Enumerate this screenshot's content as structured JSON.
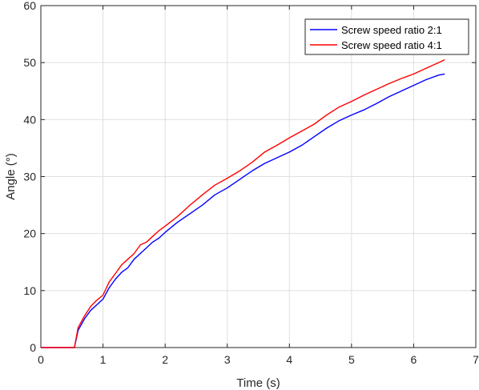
{
  "chart_data": {
    "type": "line",
    "xlabel": "Time (s)",
    "ylabel": "Angle (°)",
    "xlim": [
      0,
      7
    ],
    "ylim": [
      0,
      60
    ],
    "xticks": [
      0,
      1,
      2,
      3,
      4,
      5,
      6,
      7
    ],
    "yticks": [
      0,
      10,
      20,
      30,
      40,
      50,
      60
    ],
    "grid": true,
    "legend_position": "top-right",
    "series": [
      {
        "name": "Screw speed ratio 2:1",
        "color": "#0000ff",
        "x": [
          0,
          0.54,
          0.6,
          0.7,
          0.8,
          0.9,
          1.0,
          1.1,
          1.2,
          1.3,
          1.4,
          1.5,
          1.6,
          1.7,
          1.8,
          1.9,
          2.0,
          2.2,
          2.4,
          2.6,
          2.8,
          3.0,
          3.2,
          3.4,
          3.6,
          3.8,
          4.0,
          4.2,
          4.4,
          4.6,
          4.8,
          5.0,
          5.2,
          5.4,
          5.6,
          5.8,
          6.0,
          6.2,
          6.4,
          6.5
        ],
        "y": [
          0,
          0,
          3,
          5,
          6.5,
          7.5,
          8.5,
          10.5,
          12,
          13.2,
          14,
          15.5,
          16.5,
          17.5,
          18.5,
          19.2,
          20.2,
          22,
          23.5,
          25,
          26.8,
          28,
          29.5,
          31,
          32.3,
          33.3,
          34.3,
          35.5,
          37,
          38.5,
          39.8,
          40.8,
          41.7,
          42.8,
          44,
          45,
          46,
          47,
          47.8,
          48
        ]
      },
      {
        "name": "Screw speed ratio 4:1",
        "color": "#ff0000",
        "x": [
          0,
          0.54,
          0.6,
          0.7,
          0.8,
          0.9,
          1.0,
          1.1,
          1.2,
          1.3,
          1.4,
          1.5,
          1.6,
          1.7,
          1.8,
          1.9,
          2.0,
          2.2,
          2.4,
          2.6,
          2.8,
          3.0,
          3.2,
          3.4,
          3.6,
          3.8,
          4.0,
          4.2,
          4.4,
          4.6,
          4.8,
          5.0,
          5.2,
          5.4,
          5.6,
          5.8,
          6.0,
          6.2,
          6.4,
          6.5
        ],
        "y": [
          0,
          0,
          3.5,
          5.5,
          7.2,
          8.3,
          9.2,
          11.5,
          13,
          14.5,
          15.5,
          16.5,
          18,
          18.5,
          19.5,
          20.5,
          21.3,
          23,
          25,
          26.8,
          28.5,
          29.7,
          31,
          32.5,
          34.3,
          35.5,
          36.8,
          38,
          39.2,
          40.8,
          42.2,
          43.2,
          44.3,
          45.3,
          46.3,
          47.2,
          48,
          49,
          50,
          50.5
        ]
      }
    ]
  }
}
